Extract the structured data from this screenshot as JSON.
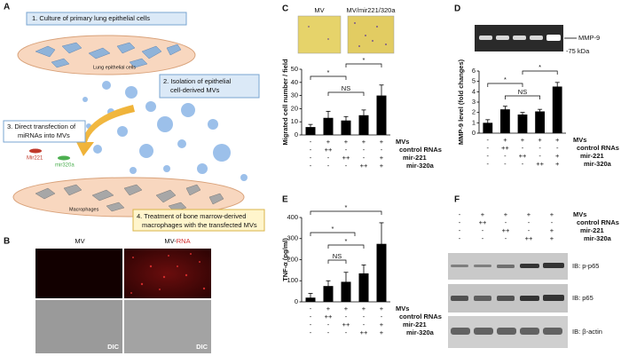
{
  "panel_letters": [
    "A",
    "B",
    "C",
    "D",
    "E",
    "F"
  ],
  "panel_a": {
    "step1": "1. Culture of primary lung epithelial cells",
    "cells_label": "Lung epithelial cells",
    "step2_line1": "2. Isolation of epithelial",
    "step2_line2": "cell-derived MVs",
    "step3_line1": "3. Direct transfection of",
    "step3_line2": "miRNAs into MVs",
    "mir221": "Mir221",
    "mir320a": "mir320a",
    "macrophages_label": "Macrophages",
    "step4_line1": "4. Treatment of bone marrow-derived",
    "step4_line2": "macrophages with the transfected MVs"
  },
  "panel_b": {
    "left_title": "MV",
    "right_title_prefix": "MV-",
    "right_title_highlight": "RNA",
    "left_dic": "DIC",
    "right_dic": "DIC"
  },
  "panel_c_images": {
    "left": "MV",
    "right": "MV/mir221/320a"
  },
  "panel_d_gel": {
    "band": "MMP-9",
    "marker": "-75 kDa"
  },
  "panel_f_blots": [
    "IB: p-p65",
    "IB: p65",
    "IB: β-actin"
  ],
  "treatments": {
    "rows": [
      {
        "label": "MVs",
        "marks": [
          "-",
          "+",
          "+",
          "+",
          "+"
        ]
      },
      {
        "label": "control RNAs",
        "marks": [
          "-",
          "++",
          "-",
          "-",
          "-"
        ]
      },
      {
        "label": "mir-221",
        "marks": [
          "-",
          "-",
          "++",
          "-",
          "+"
        ]
      },
      {
        "label": "mir-320a",
        "marks": [
          "-",
          "-",
          "-",
          "++",
          "+"
        ]
      }
    ]
  },
  "chart_data": [
    {
      "type": "bar",
      "y_label": "Migrated cell number / field",
      "values": [
        6,
        13,
        11,
        15,
        30
      ],
      "errors": [
        2,
        5,
        3,
        4,
        8
      ],
      "color": "#000000",
      "ylim": [
        0,
        50
      ],
      "yticks": [
        0,
        10,
        20,
        30,
        40,
        50
      ],
      "annotations": [
        "*",
        "*",
        "NS"
      ]
    },
    {
      "type": "bar",
      "y_label": "MMP-9 level (fold changes)",
      "values": [
        1,
        2.3,
        1.8,
        2.1,
        4.5
      ],
      "errors": [
        0.3,
        0.3,
        0.2,
        0.2,
        0.4
      ],
      "color": "#000000",
      "ylim": [
        0,
        6
      ],
      "yticks": [
        0,
        1,
        2,
        3,
        4,
        5,
        6
      ],
      "annotations": [
        "*",
        "*",
        "NS"
      ]
    },
    {
      "type": "bar",
      "y_label": "TNF-α (pg/ml)",
      "values": [
        20,
        75,
        95,
        135,
        275
      ],
      "errors": [
        20,
        25,
        45,
        40,
        100
      ],
      "color": "#000000",
      "ylim": [
        0,
        400
      ],
      "yticks": [
        0,
        100,
        200,
        300,
        400
      ],
      "annotations": [
        "*",
        "*",
        "*",
        "NS"
      ]
    }
  ]
}
